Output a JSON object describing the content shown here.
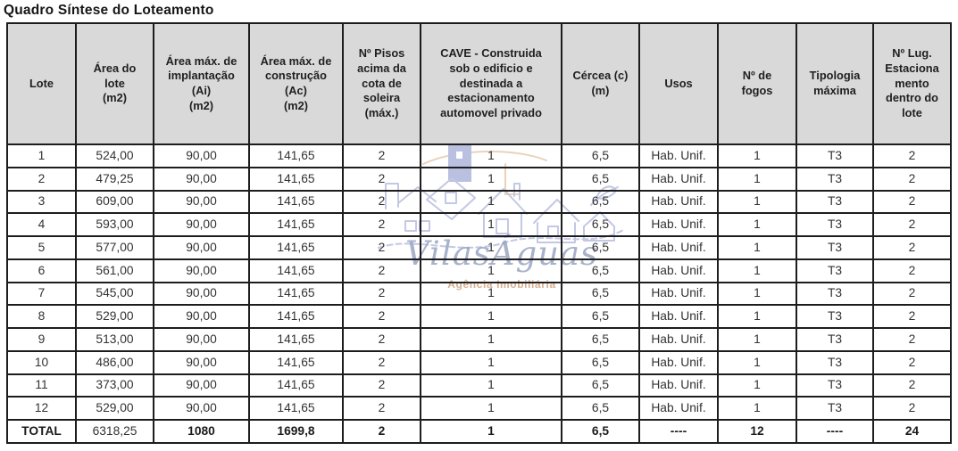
{
  "title": "Quadro Síntese do Loteamento",
  "colors": {
    "header_bg": "#d9d9d9",
    "border": "#1d1d1d",
    "body_text": "#333333",
    "watermark_blue": "#b5bbde",
    "watermark_brand": "#94a0bf",
    "watermark_tagline": "#cf9b72"
  },
  "watermark": {
    "brand": "VilasÁguas",
    "tagline": "Agência Imobiliária",
    "art": "village-sketch"
  },
  "table": {
    "columns": [
      {
        "id": "lote",
        "label": "Lote"
      },
      {
        "id": "area-lote",
        "label": "Área do\nlote\n(m2)"
      },
      {
        "id": "area-implantacao",
        "label": "Área máx. de\nimplantação\n(Ai)\n(m2)"
      },
      {
        "id": "area-construcao",
        "label": "Área máx. de\nconstrução\n(Ac)\n(m2)"
      },
      {
        "id": "pisos",
        "label": "Nº Pisos\nacima da\ncota de\nsoleira\n(máx.)"
      },
      {
        "id": "cave",
        "label": "CAVE - Construida\nsob o edificio e\ndestinada a\nestacionamento\nautomovel privado"
      },
      {
        "id": "cercea",
        "label": "Cércea (c)\n(m)"
      },
      {
        "id": "usos",
        "label": "Usos"
      },
      {
        "id": "fogos",
        "label": "Nº de\nfogos"
      },
      {
        "id": "tipologia",
        "label": "Tipologia\nmáxima"
      },
      {
        "id": "lugares",
        "label": "Nº Lug.\nEstaciona\nmento\ndentro do\nlote"
      }
    ],
    "rows": [
      [
        "1",
        "524,00",
        "90,00",
        "141,65",
        "2",
        "1",
        "6,5",
        "Hab. Unif.",
        "1",
        "T3",
        "2"
      ],
      [
        "2",
        "479,25",
        "90,00",
        "141,65",
        "2",
        "1",
        "6,5",
        "Hab. Unif.",
        "1",
        "T3",
        "2"
      ],
      [
        "3",
        "609,00",
        "90,00",
        "141,65",
        "2",
        "1",
        "6,5",
        "Hab. Unif.",
        "1",
        "T3",
        "2"
      ],
      [
        "4",
        "593,00",
        "90,00",
        "141,65",
        "2",
        "1",
        "6,5",
        "Hab. Unif.",
        "1",
        "T3",
        "2"
      ],
      [
        "5",
        "577,00",
        "90,00",
        "141,65",
        "2",
        "1",
        "6,5",
        "Hab. Unif.",
        "1",
        "T3",
        "2"
      ],
      [
        "6",
        "561,00",
        "90,00",
        "141,65",
        "2",
        "1",
        "6,5",
        "Hab. Unif.",
        "1",
        "T3",
        "2"
      ],
      [
        "7",
        "545,00",
        "90,00",
        "141,65",
        "2",
        "1",
        "6,5",
        "Hab. Unif.",
        "1",
        "T3",
        "2"
      ],
      [
        "8",
        "529,00",
        "90,00",
        "141,65",
        "2",
        "1",
        "6,5",
        "Hab. Unif.",
        "1",
        "T3",
        "2"
      ],
      [
        "9",
        "513,00",
        "90,00",
        "141,65",
        "2",
        "1",
        "6,5",
        "Hab. Unif.",
        "1",
        "T3",
        "2"
      ],
      [
        "10",
        "486,00",
        "90,00",
        "141,65",
        "2",
        "1",
        "6,5",
        "Hab. Unif.",
        "1",
        "T3",
        "2"
      ],
      [
        "11",
        "373,00",
        "90,00",
        "141,65",
        "2",
        "1",
        "6,5",
        "Hab. Unif.",
        "1",
        "T3",
        "2"
      ],
      [
        "12",
        "529,00",
        "90,00",
        "141,65",
        "2",
        "1",
        "6,5",
        "Hab. Unif.",
        "1",
        "T3",
        "2"
      ]
    ],
    "total_row": [
      "TOTAL",
      "6318,25",
      "1080",
      "1699,8",
      "2",
      "1",
      "6,5",
      "----",
      "12",
      "----",
      "24"
    ]
  }
}
